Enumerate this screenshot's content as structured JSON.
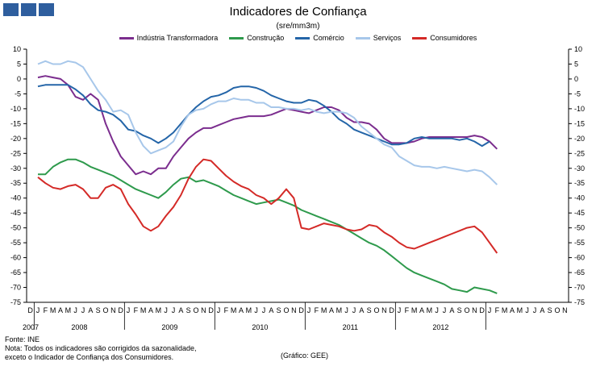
{
  "logo": {
    "blocks": 3,
    "color": "#2e5e9e"
  },
  "chart_data": {
    "type": "line",
    "title": "Indicadores de Confiança",
    "subtitle": "(sre/mm3m)",
    "ylim": [
      -75,
      10
    ],
    "y_ticks": [
      10,
      5,
      0,
      -5,
      -10,
      -15,
      -20,
      -25,
      -30,
      -35,
      -40,
      -45,
      -50,
      -55,
      -60,
      -65,
      -70,
      -75
    ],
    "month_labels": [
      "D",
      "J",
      "F",
      "M",
      "A",
      "M",
      "J",
      "J",
      "A",
      "S",
      "O",
      "N",
      "D",
      "J",
      "F",
      "M",
      "A",
      "M",
      "J",
      "J",
      "A",
      "S",
      "O",
      "N",
      "D",
      "J",
      "F",
      "M",
      "A",
      "M",
      "J",
      "J",
      "A",
      "S",
      "O",
      "N",
      "D",
      "J",
      "F",
      "M",
      "A",
      "M",
      "J",
      "J",
      "A",
      "S",
      "O",
      "N",
      "D",
      "J",
      "F",
      "M",
      "A",
      "M",
      "J",
      "J",
      "A",
      "S",
      "O",
      "N",
      "D",
      "J",
      "F",
      "M",
      "A",
      "M",
      "J",
      "J",
      "A",
      "S",
      "O",
      "N"
    ],
    "year_labels": [
      "2007",
      "2008",
      "2009",
      "2010",
      "2011",
      "2012"
    ],
    "series": [
      {
        "name": "Indústria Transformadora",
        "color": "#7b2d8e",
        "values": [
          0.5,
          1,
          0.5,
          0,
          -2,
          -6,
          -7,
          -5,
          -7,
          -15,
          -21,
          -26,
          -29,
          -32,
          -31,
          -32,
          -30,
          -30,
          -26,
          -23,
          -20,
          -18,
          -16.5,
          -16.5,
          -15.5,
          -14.5,
          -13.5,
          -13,
          -12.5,
          -12.5,
          -12.5,
          -12,
          -11,
          -10,
          -10.5,
          -11,
          -11.5,
          -10.5,
          -9.5,
          -9.5,
          -10.5,
          -13,
          -14.5,
          -14.5,
          -15,
          -17,
          -20,
          -21.5,
          -21.5,
          -21.5,
          -21,
          -20,
          -19.5,
          -19.5,
          -19.5,
          -19.5,
          -19.5,
          -19.5,
          -19,
          -19.5,
          -21,
          -23.5
        ]
      },
      {
        "name": "Construção",
        "color": "#2e9a4c",
        "values": [
          -32,
          -32,
          -29.5,
          -28,
          -27,
          -27,
          -28,
          -29.5,
          -30.5,
          -31.5,
          -32.5,
          -34,
          -35.5,
          -37,
          -38,
          -39,
          -40,
          -38,
          -35.5,
          -33.5,
          -33,
          -34.5,
          -34,
          -35,
          -36,
          -37.5,
          -39,
          -40,
          -41,
          -42,
          -41.5,
          -41,
          -40.5,
          -41.5,
          -42.5,
          -44,
          -45,
          -46,
          -47,
          -48,
          -49,
          -50.5,
          -52,
          -53.5,
          -55,
          -56,
          -57.5,
          -59.5,
          -61.5,
          -63.5,
          -65,
          -66,
          -67,
          -68,
          -69,
          -70.5,
          -71,
          -71.5,
          -70,
          -70.5,
          -71,
          -72
        ]
      },
      {
        "name": "Comércio",
        "color": "#2465a8",
        "values": [
          -2.5,
          -2,
          -2,
          -2,
          -2,
          -3.5,
          -5.5,
          -8.5,
          -10.5,
          -11,
          -12,
          -14,
          -17,
          -17.5,
          -19,
          -20,
          -21.5,
          -20,
          -18,
          -15,
          -12,
          -9.5,
          -7.5,
          -6,
          -5.5,
          -4.5,
          -3,
          -2.5,
          -2.5,
          -3,
          -4,
          -5.5,
          -6.5,
          -7.5,
          -8,
          -8,
          -7,
          -7.5,
          -9,
          -11,
          -13.5,
          -15,
          -17,
          -18,
          -19,
          -20,
          -21,
          -22,
          -22,
          -21.5,
          -20,
          -19.5,
          -20,
          -20,
          -20,
          -20,
          -20.5,
          -20,
          -21,
          -22.5,
          -21
        ]
      },
      {
        "name": "Serviços",
        "color": "#a7c7ea",
        "values": [
          5,
          6,
          5,
          5,
          6,
          5.5,
          4,
          0,
          -4,
          -7,
          -11,
          -10.5,
          -12,
          -18,
          -22.5,
          -25,
          -24,
          -23,
          -21,
          -16,
          -12,
          -10.5,
          -10,
          -8.5,
          -7.5,
          -7.5,
          -6.5,
          -7,
          -7,
          -8,
          -8,
          -9.5,
          -9.5,
          -10,
          -10,
          -10.5,
          -10,
          -11,
          -11.5,
          -11,
          -11,
          -11.5,
          -13,
          -16,
          -18,
          -20,
          -22,
          -23,
          -26,
          -27.5,
          -29,
          -29.5,
          -29.5,
          -30,
          -29.5,
          -30,
          -30.5,
          -31,
          -30.5,
          -31,
          -33,
          -35.5
        ]
      },
      {
        "name": "Consumidores",
        "color": "#d42a27",
        "values": [
          -33,
          -35,
          -36.5,
          -37,
          -36,
          -35.5,
          -37,
          -40,
          -40,
          -36.5,
          -35.5,
          -37,
          -42,
          -45.5,
          -49.5,
          -51,
          -49.5,
          -46,
          -43,
          -39,
          -33.5,
          -29.5,
          -27,
          -27.5,
          -30,
          -32.5,
          -34.5,
          -36,
          -37,
          -39,
          -40,
          -42,
          -40,
          -37,
          -40,
          -50,
          -50.5,
          -49.5,
          -48.5,
          -49,
          -49.5,
          -50.5,
          -51,
          -50.5,
          -49,
          -49.5,
          -51.5,
          -53,
          -55,
          -56.5,
          -57,
          -56,
          -55,
          -54,
          -53,
          -52,
          -51,
          -50,
          -49.5,
          -51.5,
          -55,
          -58.5
        ]
      }
    ]
  },
  "footer": {
    "source": "Fonte: INE",
    "note_line1": "Nota: Todos os indicadores são corrigidos da sazonalidade,",
    "note_line2": "exceto o Indicador de Confiança dos Consumidores.",
    "credit": "(Gráfico: GEE)"
  }
}
